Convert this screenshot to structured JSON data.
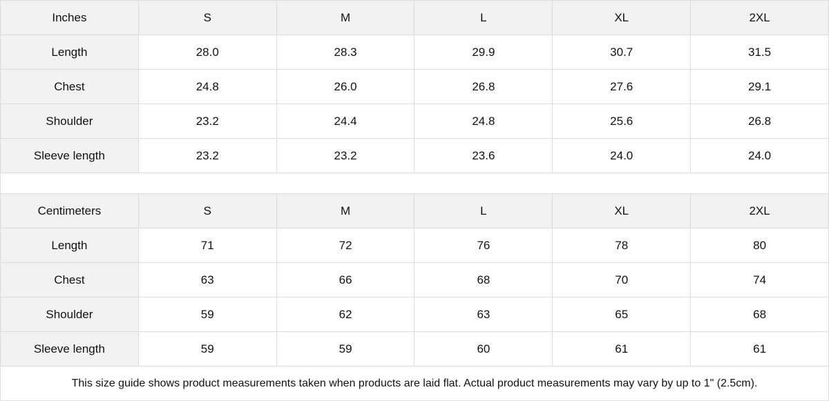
{
  "tables": [
    {
      "header": [
        "Inches",
        "S",
        "M",
        "L",
        "XL",
        "2XL"
      ],
      "rows": [
        [
          "Length",
          "28.0",
          "28.3",
          "29.9",
          "30.7",
          "31.5"
        ],
        [
          "Chest",
          "24.8",
          "26.0",
          "26.8",
          "27.6",
          "29.1"
        ],
        [
          "Shoulder",
          "23.2",
          "24.4",
          "24.8",
          "25.6",
          "26.8"
        ],
        [
          "Sleeve length",
          "23.2",
          "23.2",
          "23.6",
          "24.0",
          "24.0"
        ]
      ]
    },
    {
      "header": [
        "Centimeters",
        "S",
        "M",
        "L",
        "XL",
        "2XL"
      ],
      "rows": [
        [
          "Length",
          "71",
          "72",
          "76",
          "78",
          "80"
        ],
        [
          "Chest",
          "63",
          "66",
          "68",
          "70",
          "74"
        ],
        [
          "Shoulder",
          "59",
          "62",
          "63",
          "65",
          "68"
        ],
        [
          "Sleeve length",
          "59",
          "59",
          "60",
          "61",
          "61"
        ]
      ]
    }
  ],
  "note": "This size guide shows product measurements taken when products are laid flat.  Actual product measurements may vary by up to 1\" (2.5cm).",
  "colors": {
    "header_bg": "#f2f2f2",
    "border": "#dcdcdc"
  }
}
